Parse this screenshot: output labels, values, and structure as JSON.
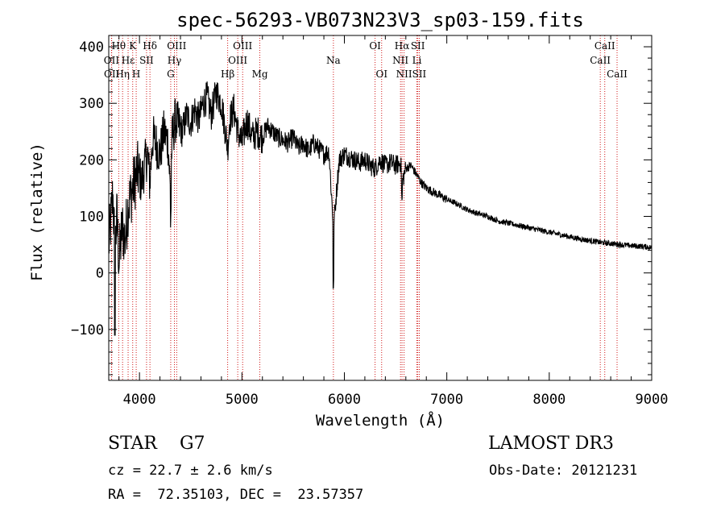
{
  "chart_data": {
    "type": "line",
    "title": "spec-56293-VB073N23V3_sp03-159.fits",
    "xlabel": "Wavelength (Å)",
    "ylabel": "Flux (relative)",
    "xlim": [
      3700,
      9000
    ],
    "ylim": [
      -190,
      420
    ],
    "x_ticks": [
      4000,
      5000,
      6000,
      7000,
      8000,
      9000
    ],
    "x_tick_labels": [
      "4000",
      "5000",
      "6000",
      "7000",
      "8000",
      "9000"
    ],
    "y_ticks": [
      -100,
      0,
      100,
      200,
      300,
      400
    ],
    "y_tick_labels": [
      "−100",
      "0",
      "100",
      "200",
      "300",
      "400"
    ],
    "series": [
      {
        "name": "flux",
        "x": [
          3700,
          3720,
          3740,
          3760,
          3780,
          3800,
          3830,
          3860,
          3890,
          3920,
          3950,
          3980,
          4000,
          4020,
          4050,
          4080,
          4100,
          4130,
          4160,
          4200,
          4240,
          4280,
          4300,
          4320,
          4350,
          4380,
          4420,
          4460,
          4500,
          4540,
          4580,
          4620,
          4660,
          4700,
          4750,
          4800,
          4840,
          4861,
          4880,
          4920,
          4960,
          5000,
          5050,
          5100,
          5150,
          5200,
          5250,
          5300,
          5350,
          5400,
          5450,
          5500,
          5550,
          5600,
          5650,
          5700,
          5750,
          5800,
          5850,
          5893,
          5950,
          6000,
          6050,
          6100,
          6150,
          6200,
          6250,
          6300,
          6350,
          6400,
          6450,
          6500,
          6550,
          6563,
          6600,
          6650,
          6700,
          6750,
          6800,
          6850,
          6900,
          6950,
          7000,
          7100,
          7200,
          7300,
          7400,
          7500,
          7600,
          7700,
          7800,
          7900,
          8000,
          8100,
          8200,
          8300,
          8400,
          8500,
          8600,
          8700,
          8800,
          8900,
          8950,
          9000
        ],
        "y": [
          50,
          90,
          140,
          40,
          100,
          20,
          80,
          60,
          120,
          140,
          160,
          180,
          170,
          160,
          190,
          210,
          160,
          240,
          230,
          210,
          250,
          230,
          150,
          240,
          270,
          260,
          250,
          280,
          265,
          290,
          270,
          300,
          310,
          280,
          320,
          300,
          250,
          220,
          270,
          290,
          250,
          230,
          270,
          240,
          250,
          240,
          260,
          250,
          240,
          235,
          230,
          240,
          220,
          230,
          215,
          230,
          220,
          210,
          215,
          80,
          200,
          210,
          205,
          200,
          195,
          200,
          190,
          185,
          200,
          190,
          195,
          190,
          195,
          160,
          185,
          190,
          175,
          160,
          150,
          145,
          140,
          135,
          130,
          122,
          112,
          105,
          100,
          92,
          88,
          84,
          80,
          76,
          72,
          68,
          64,
          60,
          57,
          54,
          52,
          50,
          48,
          47,
          46,
          45
        ]
      }
    ],
    "spectral_lines": [
      {
        "label": "Hθ",
        "wavelength": 3797,
        "row": 0
      },
      {
        "label": "OII",
        "wavelength": 3727,
        "row": 1
      },
      {
        "label": "OII",
        "wavelength": 3729,
        "row": 2
      },
      {
        "label": "Hη",
        "wavelength": 3835,
        "row": 2
      },
      {
        "label": "Hε",
        "wavelength": 3889,
        "row": 1
      },
      {
        "label": "K",
        "wavelength": 3934,
        "row": 0
      },
      {
        "label": "SII",
        "wavelength": 4069,
        "row": 1
      },
      {
        "label": "H",
        "wavelength": 3968,
        "row": 2
      },
      {
        "label": "Hδ",
        "wavelength": 4102,
        "row": 0
      },
      {
        "label": "OIII",
        "wavelength": 4363,
        "row": 0
      },
      {
        "label": "Hγ",
        "wavelength": 4341,
        "row": 1
      },
      {
        "label": "G",
        "wavelength": 4305,
        "row": 2
      },
      {
        "label": "Hβ",
        "wavelength": 4861,
        "row": 2
      },
      {
        "label": "OIII",
        "wavelength": 5007,
        "row": 0
      },
      {
        "label": "OIII",
        "wavelength": 4959,
        "row": 1
      },
      {
        "label": "Mg",
        "wavelength": 5175,
        "row": 2
      },
      {
        "label": "Na",
        "wavelength": 5893,
        "row": 1
      },
      {
        "label": "OI",
        "wavelength": 6300,
        "row": 0
      },
      {
        "label": "OI",
        "wavelength": 6364,
        "row": 2
      },
      {
        "label": "Hα",
        "wavelength": 6563,
        "row": 0
      },
      {
        "label": "NII",
        "wavelength": 6548,
        "row": 1
      },
      {
        "label": "NII",
        "wavelength": 6583,
        "row": 2
      },
      {
        "label": "SII",
        "wavelength": 6717,
        "row": 0
      },
      {
        "label": "Li",
        "wavelength": 6708,
        "row": 1
      },
      {
        "label": "SII",
        "wavelength": 6731,
        "row": 2
      },
      {
        "label": "CaII",
        "wavelength": 8542,
        "row": 0
      },
      {
        "label": "CaII",
        "wavelength": 8498,
        "row": 1
      },
      {
        "label": "CaII",
        "wavelength": 8662,
        "row": 2
      }
    ],
    "colors": {
      "spectrum": "#000000",
      "line_markers": "#cc0000",
      "axes": "#000000"
    }
  },
  "info": {
    "object_class": "STAR    G7",
    "survey": "LAMOST DR3",
    "redshift": "cz = 22.7 ± 2.6 km/s",
    "obs_date": "Obs-Date: 20121231",
    "coordinates": "RA =  72.35103, DEC =  23.57357"
  }
}
